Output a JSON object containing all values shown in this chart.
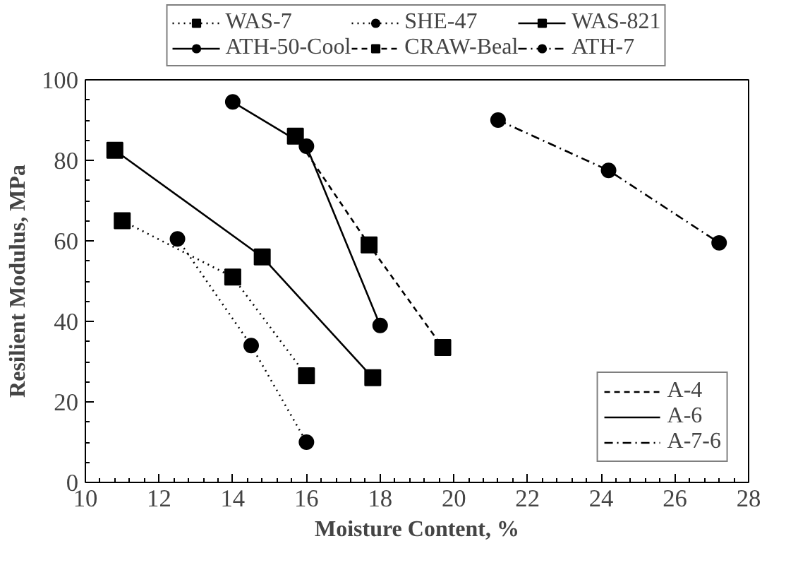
{
  "chart_data": {
    "type": "line",
    "xlabel": "Moisture Content, %",
    "ylabel": "Resilient Modulus, MPa",
    "xlim": [
      10,
      28
    ],
    "xticks": [
      10,
      12,
      14,
      16,
      18,
      20,
      22,
      24,
      26,
      28
    ],
    "ylim": [
      0,
      100
    ],
    "yticks": [
      0,
      20,
      40,
      60,
      80,
      100
    ],
    "grid": false,
    "legend": "top",
    "series": [
      {
        "name": "WAS-7",
        "color": "#000000",
        "marker": "square",
        "line_style": "dotted",
        "x": [
          11,
          14,
          16
        ],
        "values": [
          65,
          51,
          26.5
        ]
      },
      {
        "name": "SHE-47",
        "color": "#000000",
        "marker": "circle",
        "line_style": "dotted",
        "x": [
          12.5,
          14.5,
          16
        ],
        "values": [
          60.5,
          34,
          10
        ]
      },
      {
        "name": "WAS-821",
        "color": "#000000",
        "marker": "square",
        "line_style": "solid",
        "x": [
          10.8,
          14.8,
          17.8
        ],
        "values": [
          82.5,
          56,
          26
        ]
      },
      {
        "name": "ATH-50-Cool",
        "color": "#000000",
        "marker": "circle",
        "line_style": "solid",
        "x": [
          14,
          16,
          18
        ],
        "values": [
          94.5,
          83.5,
          39
        ]
      },
      {
        "name": "CRAW-Beal",
        "color": "#000000",
        "marker": "square",
        "line_style": "dashed",
        "x": [
          15.7,
          17.7,
          19.7
        ],
        "values": [
          86,
          59,
          33.5
        ]
      },
      {
        "name": "ATH-7",
        "color": "#000000",
        "marker": "circle",
        "line_style": "dashdot",
        "x": [
          21.2,
          24.2,
          27.2
        ],
        "values": [
          90,
          77.5,
          59.5
        ]
      },
      {
        "name": "A-4",
        "color": "#000000",
        "line_style": "dashed"
      },
      {
        "name": "A-6",
        "color": "#000000",
        "line_style": "solid"
      },
      {
        "name": "A-7-6",
        "color": "#000000",
        "line_style": "dashdot"
      }
    ]
  }
}
